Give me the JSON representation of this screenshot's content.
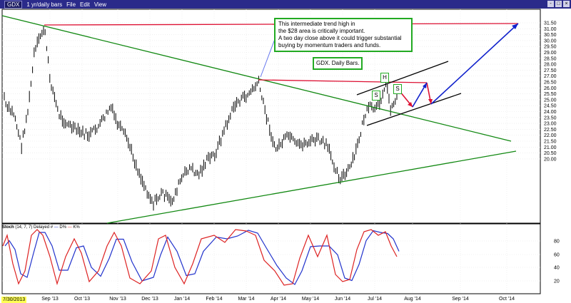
{
  "titlebar": {
    "symbol": "GDX",
    "period": "1 yr/daily bars",
    "menu": [
      "File",
      "Edit",
      "View"
    ],
    "window_buttons": [
      "-",
      "□",
      "×"
    ]
  },
  "price_axis": {
    "labels": [
      "31.50",
      "31.00",
      "30.50",
      "30.00",
      "29.50",
      "29.00",
      "28.50",
      "28.00",
      "27.50",
      "27.00",
      "26.50",
      "26.00",
      "25.50",
      "25.00",
      "24.50",
      "24.00",
      "23.50",
      "23.00",
      "22.50",
      "22.00",
      "21.50",
      "21.00",
      "20.50",
      "20.00"
    ]
  },
  "stoch_axis": {
    "labels": [
      "80",
      "60",
      "40",
      "20"
    ]
  },
  "date_axis": {
    "start": "7/30/2013",
    "labels": [
      "Sep '13",
      "Oct '13",
      "Nov '13",
      "Dec '13",
      "Jan '14",
      "Feb '14",
      "Mar '14",
      "Apr '14",
      "May '14",
      "Jun '14",
      "Jul '14",
      "Aug '14",
      "Sep '14",
      "Oct '14"
    ]
  },
  "annotations": {
    "main_text": "This intermediate trend high in\nthe $28 area is critically important.\nA two day close above it could trigger substantial\nbuying by momentum traders and funds.",
    "chart_title": "GDX. Daily Bars.",
    "hs": [
      "S",
      "H",
      "S"
    ]
  },
  "stoch_header": {
    "name": "Stoch",
    "params": "(14, 7, 7) Delayed #",
    "d_label": "D%",
    "k_label": "K%"
  },
  "colors": {
    "price_bars": "#000000",
    "trendline_green": "#118811",
    "resistance_red": "#dd1133",
    "arrow_blue": "#1122cc",
    "channel_black": "#000000",
    "stoch_d": "#2233cc",
    "stoch_k": "#dd2222",
    "titlebar": "#2a2a8a",
    "annotation_border": "#22aa22"
  }
}
